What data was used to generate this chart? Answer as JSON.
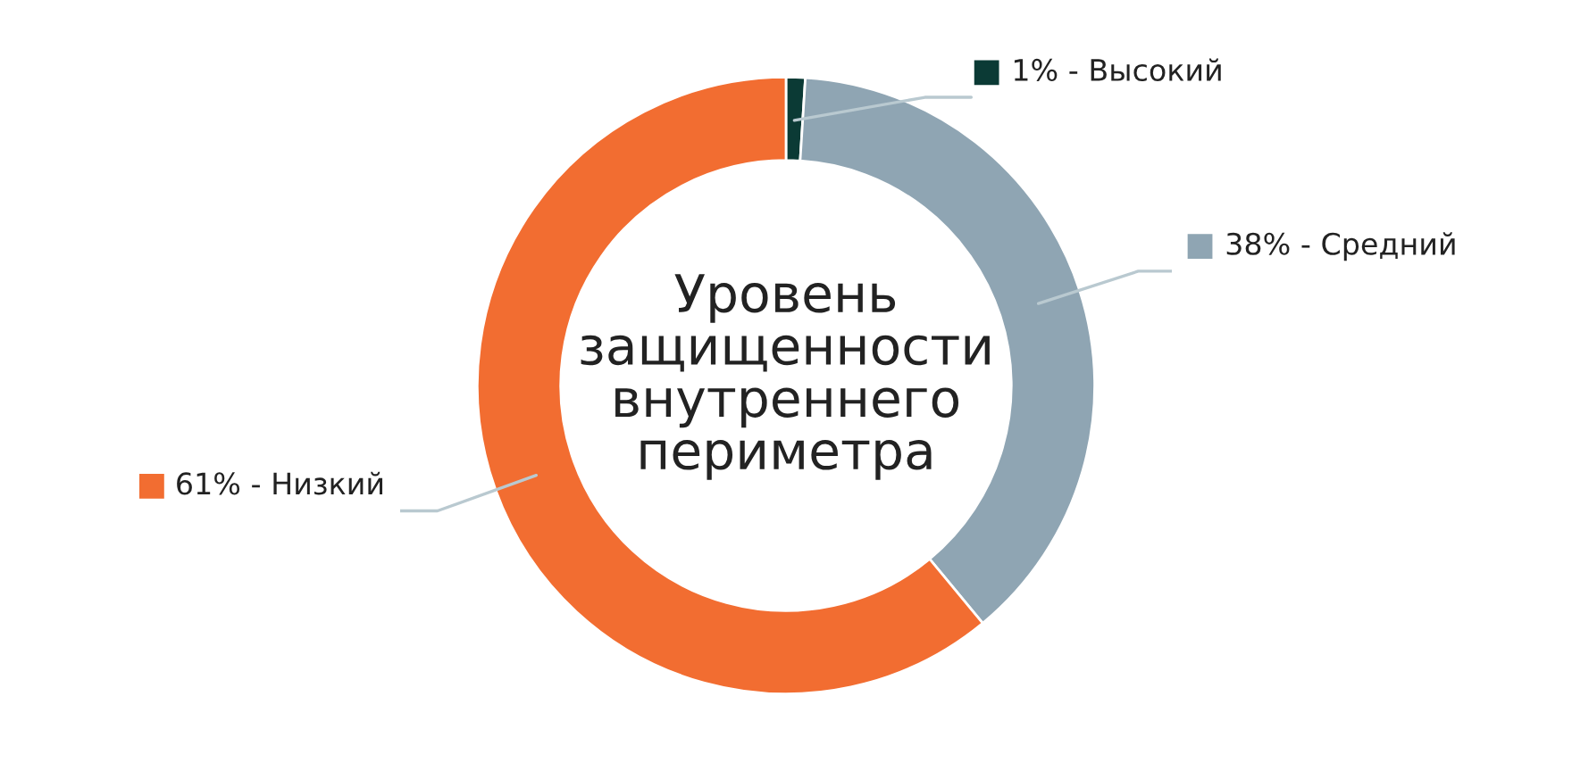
{
  "chart_data": {
    "type": "donut",
    "title": "Уровень\nзащищенности\nвнутреннего\nпериметра",
    "categories": [
      "Высокий",
      "Средний",
      "Низкий"
    ],
    "values": [
      1,
      38,
      61
    ],
    "colors": [
      "#0b3a35",
      "#8fa5b3",
      "#f26d31"
    ],
    "value_labels": [
      "1%",
      "38%",
      "61%"
    ],
    "legend": "right"
  }
}
